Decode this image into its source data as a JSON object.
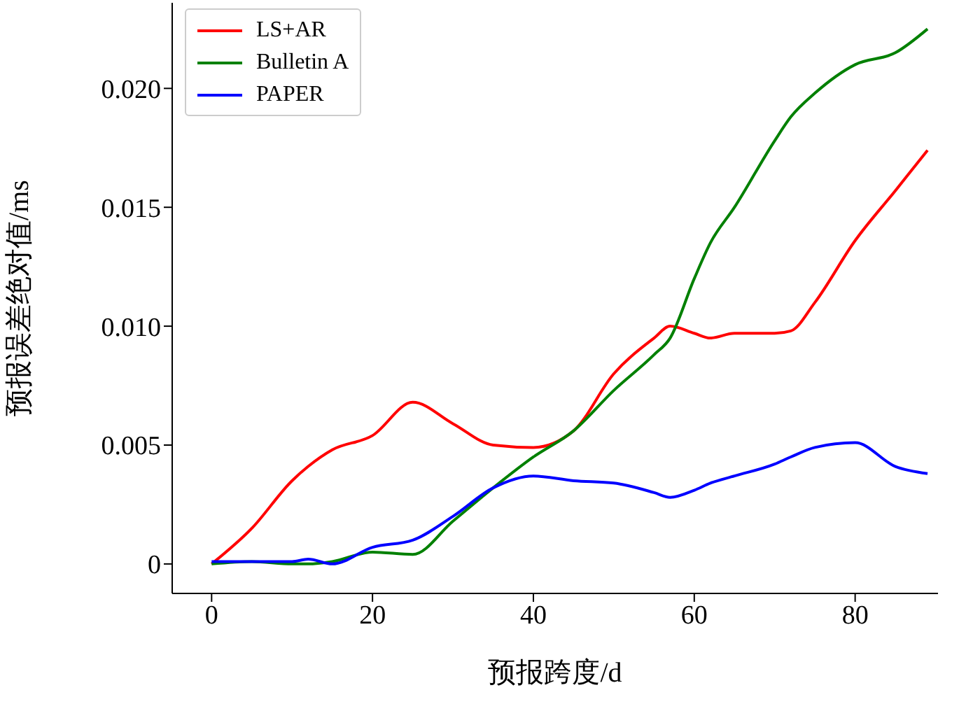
{
  "chart_data": {
    "type": "line",
    "xlabel": "预报跨度/d",
    "ylabel": "预报误差绝对值/ms",
    "x": [
      0,
      5,
      10,
      12,
      15,
      20,
      25,
      30,
      35,
      40,
      45,
      50,
      55,
      57,
      60,
      62,
      65,
      70,
      72,
      75,
      80,
      85,
      89
    ],
    "series": [
      {
        "name": "LS+AR",
        "color": "#ff0000",
        "values": [
          0,
          0.0015,
          0.0035,
          0.0041,
          0.0048,
          0.0054,
          0.0068,
          0.0059,
          0.005,
          0.0049,
          0.0056,
          0.008,
          0.0095,
          0.01,
          0.0097,
          0.0095,
          0.0097,
          0.0097,
          0.0098,
          0.011,
          0.0136,
          0.0157,
          0.0174
        ]
      },
      {
        "name": "Bulletin A",
        "color": "#008000",
        "values": [
          0,
          0.0001,
          0,
          0,
          0.0001,
          0.0005,
          0.0004,
          0.0018,
          0.0032,
          0.0045,
          0.0056,
          0.0073,
          0.0088,
          0.0095,
          0.012,
          0.0135,
          0.015,
          0.0178,
          0.0188,
          0.0198,
          0.021,
          0.0215,
          0.0225
        ]
      },
      {
        "name": "PAPER",
        "color": "#0000ff",
        "values": [
          0.0001,
          0.0001,
          0.0001,
          0.0002,
          0,
          0.0007,
          0.001,
          0.002,
          0.0032,
          0.0037,
          0.0035,
          0.0034,
          0.003,
          0.0028,
          0.0031,
          0.0034,
          0.0037,
          0.0042,
          0.0045,
          0.0049,
          0.0051,
          0.0041,
          0.0038
        ]
      }
    ],
    "xlim": [
      -4.9,
      90.3
    ],
    "xticks": [
      0,
      20,
      40,
      60,
      80
    ],
    "ylim": [
      -0.00124,
      0.0236
    ],
    "yticks": [
      0,
      0.005,
      {
        "value": 0.01,
        "label": "0.010"
      },
      0.015,
      {
        "value": 0.02,
        "label": "0.020"
      }
    ],
    "grid": false,
    "legend": "top left",
    "marker": "none",
    "line_style": "solid"
  }
}
